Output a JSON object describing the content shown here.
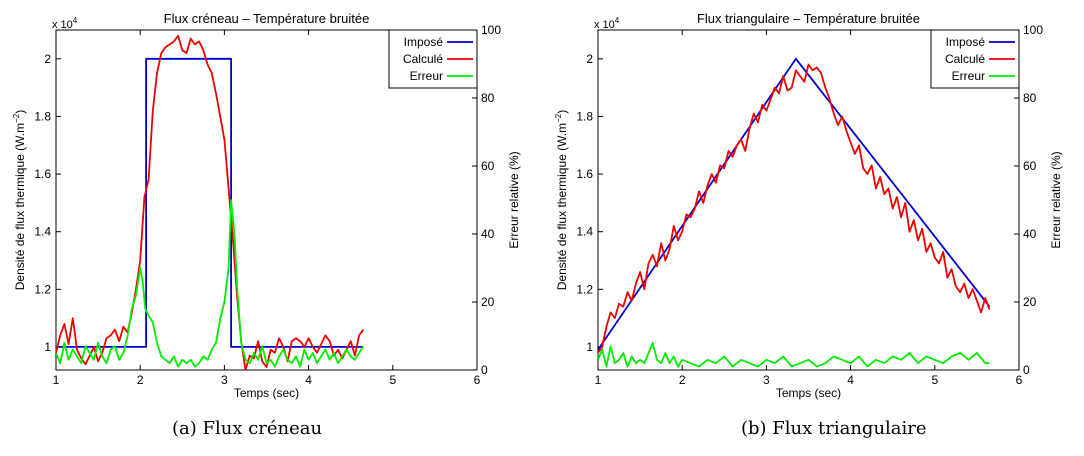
{
  "figure": {
    "caption_a": "(a)  Flux créneau",
    "caption_b": "(b)  Flux triangulaire"
  },
  "chart_data": [
    {
      "type": "line",
      "title": "Flux créneau – Température bruitée",
      "xlabel": "Temps (sec)",
      "ylabel_left": "Densité de flux thermique (W.m",
      "ylabel_left_sup": "−2",
      "ylabel_left_end": ")",
      "ylabel_right": "Erreur relative (%)",
      "y_multiplier_base": "x 10",
      "y_multiplier_exp": "4",
      "xlim": [
        1,
        6
      ],
      "ylim_left": [
        0.92,
        2.1
      ],
      "ylim_right": [
        0,
        100
      ],
      "xticks": [
        1,
        2,
        3,
        4,
        5,
        6
      ],
      "yticks_left": [
        1,
        1.2,
        1.4,
        1.6,
        1.8,
        2
      ],
      "yticks_right": [
        0,
        20,
        40,
        60,
        80,
        100
      ],
      "legend_position": "top-right",
      "colors": {
        "imposed": "#0000cc",
        "computed": "#ee0000",
        "error": "#00ee00"
      },
      "series": [
        {
          "name": "Imposé",
          "axis": "left",
          "x": [
            1.0,
            2.07,
            2.07,
            3.08,
            3.08,
            4.65
          ],
          "y": [
            1.0,
            1.0,
            2.0,
            2.0,
            1.0,
            1.0
          ]
        },
        {
          "name": "Calculé",
          "axis": "left",
          "x": [
            1.0,
            1.05,
            1.1,
            1.15,
            1.2,
            1.25,
            1.3,
            1.35,
            1.4,
            1.45,
            1.5,
            1.55,
            1.6,
            1.65,
            1.7,
            1.75,
            1.8,
            1.85,
            1.9,
            1.95,
            2.0,
            2.05,
            2.1,
            2.15,
            2.2,
            2.25,
            2.3,
            2.35,
            2.4,
            2.45,
            2.5,
            2.55,
            2.6,
            2.65,
            2.7,
            2.75,
            2.8,
            2.85,
            2.9,
            2.95,
            3.0,
            3.05,
            3.1,
            3.15,
            3.2,
            3.25,
            3.3,
            3.35,
            3.4,
            3.45,
            3.5,
            3.55,
            3.6,
            3.65,
            3.7,
            3.75,
            3.8,
            3.85,
            3.9,
            3.95,
            4.0,
            4.05,
            4.1,
            4.15,
            4.2,
            4.25,
            4.3,
            4.35,
            4.4,
            4.45,
            4.5,
            4.55,
            4.6,
            4.65
          ],
          "y": [
            0.98,
            1.04,
            1.08,
            1.01,
            1.1,
            0.99,
            0.96,
            0.94,
            0.97,
            1.0,
            0.95,
            0.98,
            1.03,
            1.04,
            1.06,
            1.02,
            1.07,
            1.05,
            1.12,
            1.2,
            1.3,
            1.52,
            1.58,
            1.82,
            1.95,
            2.02,
            2.04,
            2.05,
            2.06,
            2.08,
            2.03,
            2.02,
            2.07,
            2.05,
            2.06,
            2.03,
            1.98,
            1.95,
            1.88,
            1.8,
            1.72,
            1.55,
            1.38,
            1.18,
            1.02,
            0.92,
            0.97,
            0.96,
            1.02,
            0.95,
            0.93,
            0.99,
            0.98,
            1.03,
            1.0,
            0.95,
            1.02,
            1.03,
            1.02,
            1.0,
            1.03,
            1.0,
            0.98,
            1.01,
            1.04,
            1.02,
            0.97,
            0.99,
            0.96,
            0.99,
            1.02,
            0.97,
            1.04,
            1.06
          ]
        },
        {
          "name": "Erreur",
          "axis": "right",
          "x": [
            1.0,
            1.05,
            1.1,
            1.15,
            1.2,
            1.25,
            1.3,
            1.35,
            1.4,
            1.45,
            1.5,
            1.55,
            1.6,
            1.65,
            1.7,
            1.75,
            1.8,
            1.85,
            1.9,
            1.95,
            2.0,
            2.03,
            2.06,
            2.1,
            2.15,
            2.2,
            2.25,
            2.3,
            2.35,
            2.4,
            2.45,
            2.5,
            2.55,
            2.6,
            2.65,
            2.7,
            2.75,
            2.8,
            2.85,
            2.9,
            2.95,
            3.0,
            3.05,
            3.08,
            3.12,
            3.15,
            3.2,
            3.25,
            3.3,
            3.35,
            3.4,
            3.45,
            3.5,
            3.55,
            3.6,
            3.65,
            3.7,
            3.75,
            3.8,
            3.85,
            3.9,
            3.95,
            4.0,
            4.05,
            4.1,
            4.15,
            4.2,
            4.25,
            4.3,
            4.35,
            4.4,
            4.45,
            4.5,
            4.55,
            4.6,
            4.65
          ],
          "y": [
            5,
            2,
            8,
            3,
            6,
            4,
            2,
            7,
            5,
            3,
            8,
            4,
            2,
            6,
            7,
            3,
            5,
            10,
            18,
            22,
            30,
            26,
            18,
            16,
            14,
            8,
            4,
            3,
            2,
            4,
            1,
            3,
            2,
            3,
            1,
            2,
            4,
            3,
            6,
            8,
            15,
            20,
            30,
            50,
            40,
            25,
            8,
            3,
            2,
            5,
            3,
            7,
            2,
            3,
            1,
            4,
            6,
            3,
            2,
            4,
            1,
            6,
            3,
            5,
            2,
            4,
            6,
            3,
            5,
            2,
            4,
            6,
            4,
            3,
            5,
            7
          ]
        }
      ]
    },
    {
      "type": "line",
      "title": "Flux triangulaire – Température bruitée",
      "xlabel": "Temps (sec)",
      "ylabel_left": "Densité de flux thermique (W.m",
      "ylabel_left_sup": "−2",
      "ylabel_left_end": ")",
      "ylabel_right": "Erreur relative (%)",
      "y_multiplier_base": "x 10",
      "y_multiplier_exp": "4",
      "xlim": [
        1,
        6
      ],
      "ylim_left": [
        0.92,
        2.1
      ],
      "ylim_right": [
        0,
        100
      ],
      "xticks": [
        1,
        2,
        3,
        4,
        5,
        6
      ],
      "yticks_left": [
        1,
        1.2,
        1.4,
        1.6,
        1.8,
        2
      ],
      "yticks_right": [
        0,
        20,
        40,
        60,
        80,
        100
      ],
      "legend_position": "top-right",
      "colors": {
        "imposed": "#0000cc",
        "computed": "#ee0000",
        "error": "#00ee00"
      },
      "series": [
        {
          "name": "Imposé",
          "axis": "left",
          "x": [
            1.0,
            3.35,
            5.65
          ],
          "y": [
            0.99,
            2.0,
            1.14
          ]
        },
        {
          "name": "Calculé",
          "axis": "left",
          "x": [
            1.0,
            1.05,
            1.1,
            1.15,
            1.2,
            1.25,
            1.3,
            1.35,
            1.4,
            1.45,
            1.5,
            1.55,
            1.6,
            1.65,
            1.7,
            1.75,
            1.8,
            1.85,
            1.9,
            1.95,
            2.0,
            2.05,
            2.1,
            2.15,
            2.2,
            2.25,
            2.3,
            2.35,
            2.4,
            2.45,
            2.5,
            2.55,
            2.6,
            2.65,
            2.7,
            2.75,
            2.8,
            2.85,
            2.9,
            2.95,
            3.0,
            3.05,
            3.1,
            3.15,
            3.2,
            3.25,
            3.3,
            3.35,
            3.4,
            3.45,
            3.5,
            3.55,
            3.6,
            3.65,
            3.7,
            3.75,
            3.8,
            3.85,
            3.9,
            3.95,
            4.0,
            4.05,
            4.1,
            4.15,
            4.2,
            4.25,
            4.3,
            4.35,
            4.4,
            4.45,
            4.5,
            4.55,
            4.6,
            4.65,
            4.7,
            4.75,
            4.8,
            4.85,
            4.9,
            4.95,
            5.0,
            5.05,
            5.1,
            5.15,
            5.2,
            5.25,
            5.3,
            5.35,
            5.4,
            5.45,
            5.5,
            5.55,
            5.6,
            5.65
          ],
          "y": [
            0.98,
            1.0,
            1.07,
            1.12,
            1.1,
            1.15,
            1.14,
            1.19,
            1.16,
            1.22,
            1.26,
            1.2,
            1.29,
            1.32,
            1.28,
            1.36,
            1.3,
            1.34,
            1.42,
            1.37,
            1.4,
            1.46,
            1.45,
            1.48,
            1.54,
            1.5,
            1.56,
            1.6,
            1.57,
            1.63,
            1.62,
            1.68,
            1.66,
            1.7,
            1.72,
            1.68,
            1.76,
            1.81,
            1.78,
            1.84,
            1.82,
            1.86,
            1.9,
            1.88,
            1.94,
            1.89,
            1.9,
            1.96,
            1.94,
            1.92,
            1.98,
            1.96,
            1.97,
            1.95,
            1.9,
            1.86,
            1.81,
            1.77,
            1.8,
            1.75,
            1.71,
            1.67,
            1.7,
            1.62,
            1.6,
            1.63,
            1.55,
            1.59,
            1.53,
            1.55,
            1.48,
            1.52,
            1.45,
            1.5,
            1.4,
            1.44,
            1.37,
            1.41,
            1.33,
            1.36,
            1.31,
            1.29,
            1.33,
            1.24,
            1.27,
            1.21,
            1.19,
            1.22,
            1.17,
            1.2,
            1.16,
            1.12,
            1.17,
            1.13
          ]
        },
        {
          "name": "Erreur",
          "axis": "right",
          "x": [
            1.0,
            1.05,
            1.1,
            1.15,
            1.2,
            1.25,
            1.3,
            1.35,
            1.4,
            1.45,
            1.5,
            1.55,
            1.6,
            1.65,
            1.7,
            1.75,
            1.8,
            1.85,
            1.9,
            1.95,
            2.0,
            2.1,
            2.2,
            2.3,
            2.4,
            2.5,
            2.6,
            2.7,
            2.8,
            2.9,
            3.0,
            3.1,
            3.2,
            3.3,
            3.4,
            3.5,
            3.6,
            3.7,
            3.8,
            3.9,
            4.0,
            4.1,
            4.2,
            4.3,
            4.4,
            4.5,
            4.6,
            4.7,
            4.8,
            4.9,
            5.0,
            5.1,
            5.2,
            5.3,
            5.4,
            5.5,
            5.6,
            5.65
          ],
          "y": [
            3,
            6,
            1,
            7,
            2,
            3,
            5,
            1,
            4,
            2,
            3,
            2,
            5,
            8,
            3,
            2,
            5,
            2,
            4,
            1,
            3,
            2,
            1,
            3,
            2,
            4,
            1,
            3,
            2,
            1,
            3,
            2,
            4,
            1,
            2,
            3,
            1,
            2,
            4,
            3,
            2,
            4,
            1,
            3,
            2,
            4,
            3,
            5,
            2,
            4,
            3,
            2,
            4,
            5,
            3,
            5,
            2,
            2
          ]
        }
      ]
    }
  ]
}
